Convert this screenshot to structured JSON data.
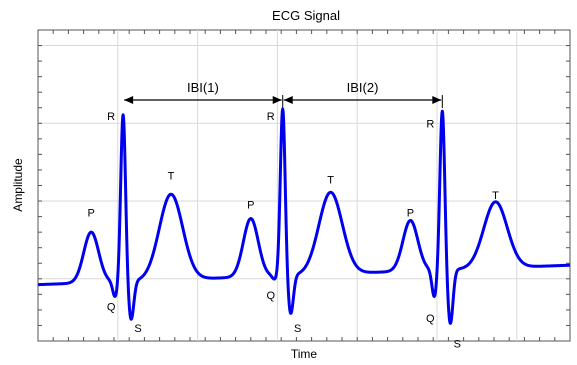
{
  "chart_data": {
    "type": "line",
    "title": "ECG Signal",
    "xlabel": "Time",
    "ylabel": "Amplitude",
    "grid": true,
    "tick_labels_shown": false,
    "xlim": [
      0,
      10
    ],
    "ylim": [
      -1,
      3
    ],
    "x_gridlines": [
      1.5,
      3,
      4.5,
      6,
      7.5,
      9
    ],
    "y_gridlines": [
      -0.2,
      0.8,
      1.8,
      2.8
    ],
    "series": [
      {
        "color": "#0000ee",
        "beats": [
          {
            "P": [
              1.0,
              0.5
            ],
            "Q": [
              1.45,
              -0.35
            ],
            "R": [
              1.6,
              2.0
            ],
            "S": [
              1.75,
              -0.65
            ],
            "T": [
              2.5,
              0.95
            ]
          },
          {
            "P": [
              4.0,
              0.6
            ],
            "Q": [
              4.45,
              -0.2
            ],
            "R": [
              4.6,
              2.0
            ],
            "S": [
              4.75,
              -0.65
            ],
            "T": [
              5.5,
              0.9
            ]
          },
          {
            "P": [
              7.0,
              0.5
            ],
            "Q": [
              7.45,
              -0.5
            ],
            "R": [
              7.6,
              1.9
            ],
            "S": [
              7.75,
              -0.85
            ],
            "T": [
              8.6,
              0.7
            ]
          }
        ]
      }
    ],
    "annotations": [
      {
        "text": "IBI(1)",
        "from_x": 1.6,
        "to_x": 4.6,
        "y": 2.1
      },
      {
        "text": "IBI(2)",
        "from_x": 4.6,
        "to_x": 7.6,
        "y": 2.1
      }
    ]
  }
}
